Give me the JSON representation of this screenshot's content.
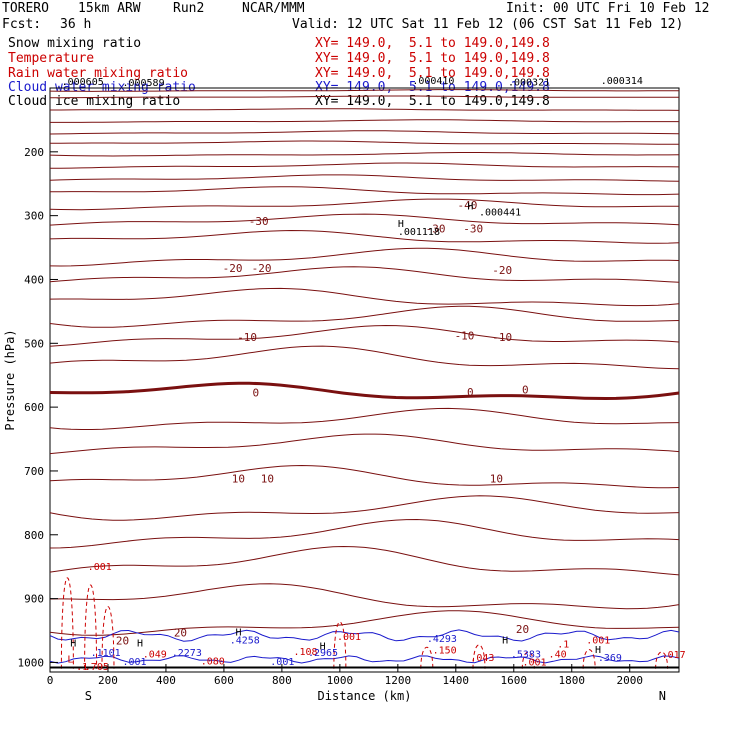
{
  "header": {
    "model": "TORERO",
    "resolution": "15km ARW",
    "run": "Run2",
    "center": "NCAR/MMM",
    "init": "Init: 00 UTC Fri 10 Feb 12",
    "fcst_label": "Fcst:",
    "fcst_value": "36 h",
    "valid": "Valid: 12 UTC Sat 11 Feb 12 (06 CST Sat 11 Feb 12)"
  },
  "legend": [
    {
      "name": "Snow mixing ratio",
      "xy": "XY= 149.0,  5.1 to 149.0,149.8",
      "color": "#000000"
    },
    {
      "name": "Temperature",
      "xy": "XY= 149.0,  5.1 to 149.0,149.8",
      "color": "#cc0000"
    },
    {
      "name": "Rain water mixing ratio",
      "xy": "XY= 149.0,  5.1 to 149.0,149.8",
      "color": "#cc0000"
    },
    {
      "name": "Cloud water mixing ratio",
      "xy": "XY= 149.0,  5.1 to 149.0,149.8",
      "color": "#1a1acc"
    },
    {
      "name": "Cloud ice mixing ratio",
      "xy": "XY= 149.0,  5.1 to 149.0,149.8",
      "color": "#000000"
    }
  ],
  "chart_data": {
    "type": "contour cross-section",
    "xlabel": "Distance (km)",
    "ylabel": "Pressure (hPa)",
    "xlim": [
      0,
      2170
    ],
    "ylim": [
      1015,
      100
    ],
    "x_ticks": [
      0,
      200,
      400,
      600,
      800,
      1000,
      1200,
      1400,
      1600,
      1800,
      2000
    ],
    "y_ticks": [
      200,
      300,
      400,
      500,
      600,
      700,
      800,
      900,
      1000
    ],
    "end_labels": {
      "left": "S",
      "right": "N"
    },
    "temperature_contours": [
      {
        "label": "-40",
        "x": 1440,
        "p": 283
      },
      {
        "label": "-30",
        "x": 720,
        "p": 308
      },
      {
        "label": "-30",
        "x": 1330,
        "p": 320
      },
      {
        "label": "-30",
        "x": 1460,
        "p": 320
      },
      {
        "label": "-20",
        "x": 630,
        "p": 382
      },
      {
        "label": "-20",
        "x": 730,
        "p": 382
      },
      {
        "label": "-20",
        "x": 1560,
        "p": 385
      },
      {
        "label": "-10",
        "x": 680,
        "p": 490
      },
      {
        "label": "-10",
        "x": 1430,
        "p": 488
      },
      {
        "label": "-10",
        "x": 1560,
        "p": 490
      },
      {
        "label": "0",
        "x": 710,
        "p": 577
      },
      {
        "label": "0",
        "x": 1450,
        "p": 576
      },
      {
        "label": "0",
        "x": 1640,
        "p": 572
      },
      {
        "label": "10",
        "x": 650,
        "p": 712
      },
      {
        "label": "10",
        "x": 750,
        "p": 712
      },
      {
        "label": "10",
        "x": 1540,
        "p": 712
      },
      {
        "label": "20",
        "x": 450,
        "p": 953
      },
      {
        "label": "20",
        "x": 250,
        "p": 966
      },
      {
        "label": "20",
        "x": 1630,
        "p": 948
      }
    ],
    "snow_ice_labels": [
      ".000605",
      ".000589",
      ".000410",
      ".000321",
      ".000314",
      ".001118",
      ".000441"
    ],
    "rain_labels": [
      ".001",
      ".049",
      ".080",
      ".108",
      ".150",
      ".043",
      ".017",
      ".001",
      ".1",
      ".001"
    ],
    "cloud_water_labels": [
      ".1101",
      ".2273",
      ".4258",
      ".2965",
      ".4293",
      ".5383",
      ".369",
      ".001",
      ".001"
    ],
    "extremum_label": "H",
    "min_label": "L",
    "misc_labels": [
      ".1",
      ".705",
      ".40",
      ".001"
    ]
  }
}
